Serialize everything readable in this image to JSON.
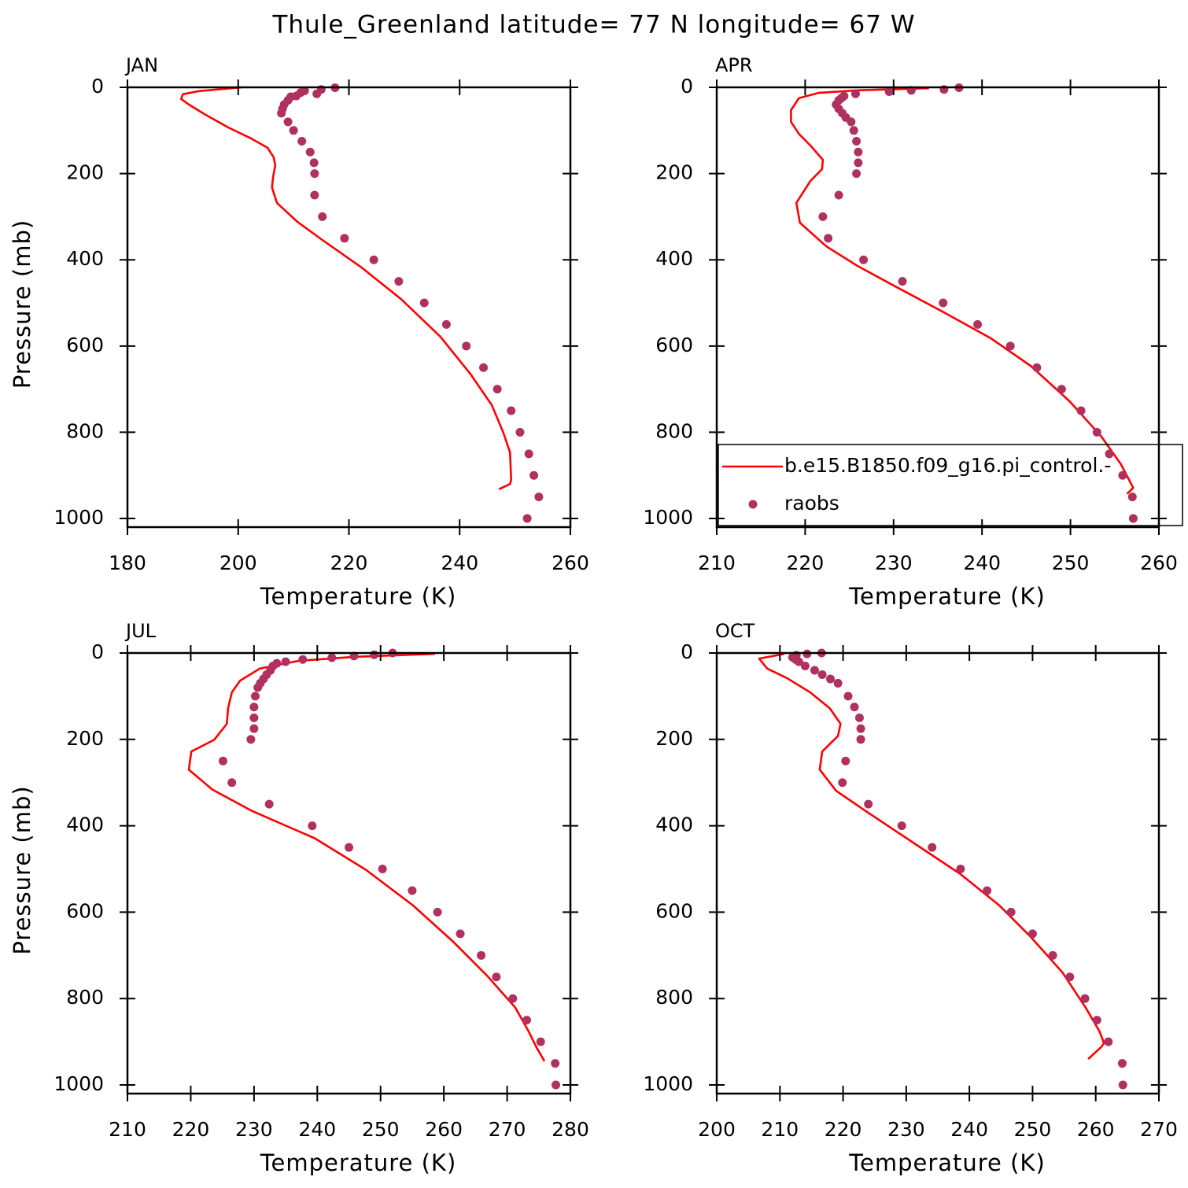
{
  "title": "Thule_Greenland  latitude= 77 N longitude= 67 W",
  "chart_data": [
    {
      "type": "line",
      "label": "JAN",
      "xlabel": "Temperature (K)",
      "ylabel": "Pressure (mb)",
      "xlim": [
        180,
        260
      ],
      "xticks": [
        180,
        200,
        220,
        240,
        260
      ],
      "ylim": [
        0,
        1020
      ],
      "y_reversed": true,
      "yticks": [
        0,
        200,
        400,
        600,
        800,
        1000
      ],
      "series": [
        {
          "type": "line",
          "color": "#ff0000",
          "x": [
            200.7,
            192.8,
            190,
            189.7,
            191.1,
            193.9,
            198.2,
            202.4,
            205.3,
            206.4,
            206.7,
            206.3,
            206.1,
            207,
            210.7,
            215.2,
            222.3,
            229.4,
            236.5,
            241.9,
            245.8,
            247.9,
            249.1,
            249.3,
            249.1,
            247.1
          ],
          "values": [
            0,
            9,
            16,
            27,
            40,
            62,
            93,
            119,
            140,
            162,
            181,
            208,
            232,
            268,
            312,
            354,
            418,
            491,
            578,
            664,
            737,
            801,
            847,
            911,
            920,
            932
          ]
        },
        {
          "type": "scatter",
          "color": "#b03060",
          "x": [
            217.5,
            215.0,
            214.2,
            212.0,
            211.3,
            210.5,
            209.5,
            209.0,
            208.3,
            208.0,
            207.8,
            209.0,
            210.0,
            211.5,
            213.0,
            213.7,
            213.8,
            213.8,
            215.2,
            219.2,
            224.5,
            229.0,
            233.6,
            237.6,
            241.2,
            244.3,
            246.8,
            249.3,
            250.9,
            252.5,
            253.4,
            254.3,
            252.2
          ],
          "values": [
            1,
            5,
            15,
            8,
            12,
            20,
            22,
            30,
            40,
            50,
            60,
            80,
            100,
            125,
            150,
            175,
            200,
            250,
            300,
            350,
            400,
            450,
            500,
            550,
            600,
            650,
            700,
            750,
            800,
            850,
            900,
            950,
            1000
          ]
        }
      ]
    },
    {
      "type": "line",
      "label": "APR",
      "xlabel": "Temperature (K)",
      "xlim": [
        210,
        260
      ],
      "xticks": [
        210,
        220,
        230,
        240,
        250,
        260
      ],
      "ylim": [
        0,
        1020
      ],
      "y_reversed": true,
      "yticks": [
        0,
        200,
        400,
        600,
        800,
        1000
      ],
      "legend": "lower right",
      "series": [
        {
          "type": "line",
          "name": "b.e15.B1850.f09_g16.pi_control.-",
          "color": "#ff0000",
          "x": [
            234,
            225.9,
            221.5,
            219.3,
            218.4,
            218.4,
            219.3,
            220.6,
            222,
            221.9,
            220.6,
            219,
            219.4,
            222.4,
            225.9,
            230.4,
            235.7,
            241,
            245.5,
            249.9,
            253.5,
            255.7,
            257.1,
            256.4
          ],
          "values": [
            2,
            7,
            13,
            25,
            53,
            80,
            108,
            135,
            168,
            190,
            217,
            268,
            314,
            369,
            414,
            464,
            522,
            582,
            646,
            728,
            810,
            874,
            929,
            943
          ]
        },
        {
          "type": "scatter",
          "name": "raobs",
          "color": "#b03060",
          "x": [
            237.4,
            235.7,
            232.0,
            229.5,
            225.7,
            224.4,
            224.1,
            223.8,
            223.5,
            223.8,
            224.2,
            224.6,
            225.2,
            225.5,
            225.8,
            226.0,
            226.0,
            225.8,
            223.8,
            222.0,
            222.6,
            226.6,
            231.0,
            235.6,
            239.5,
            243.2,
            246.2,
            249.0,
            251.2,
            253.0,
            254.4,
            255.9,
            257.0,
            257.1
          ],
          "values": [
            1,
            5,
            7,
            10,
            15,
            20,
            25,
            30,
            40,
            50,
            60,
            70,
            80,
            100,
            125,
            150,
            175,
            200,
            250,
            300,
            350,
            400,
            450,
            500,
            550,
            600,
            650,
            700,
            750,
            800,
            850,
            900,
            950,
            1000
          ]
        }
      ]
    },
    {
      "type": "line",
      "label": "JUL",
      "xlabel": "Temperature (K)",
      "ylabel": "Pressure (mb)",
      "xlim": [
        210,
        280
      ],
      "xticks": [
        210,
        220,
        230,
        240,
        250,
        260,
        270,
        280
      ],
      "ylim": [
        0,
        1020
      ],
      "y_reversed": true,
      "yticks": [
        0,
        200,
        400,
        600,
        800,
        1000
      ],
      "series": [
        {
          "type": "line",
          "color": "#ff0000",
          "x": [
            258.6,
            245.8,
            237.1,
            230.9,
            227.8,
            226.5,
            225.9,
            225.7,
            223.7,
            220.1,
            219.7,
            223.4,
            229.6,
            239.6,
            247.7,
            255.1,
            261.3,
            266.9,
            271.3,
            273.4,
            274.6,
            275.9
          ],
          "values": [
            2,
            9,
            18,
            36,
            64,
            91,
            128,
            164,
            201,
            228,
            270,
            316,
            365,
            429,
            502,
            584,
            666,
            748,
            821,
            876,
            912,
            945
          ]
        },
        {
          "type": "scatter",
          "color": "#b03060",
          "x": [
            251.9,
            249.0,
            245.8,
            242.3,
            237.7,
            235.0,
            233.6,
            233.0,
            232.6,
            232.0,
            231.5,
            231.0,
            230.6,
            230.2,
            230.0,
            230.0,
            230.0,
            229.5,
            225.1,
            226.5,
            232.4,
            239.2,
            245.0,
            250.3,
            255.0,
            259.0,
            262.6,
            265.9,
            268.3,
            270.9,
            273.1,
            275.3,
            277.6,
            277.7
          ],
          "values": [
            0,
            4,
            7,
            11,
            15,
            20,
            24,
            30,
            40,
            50,
            60,
            70,
            80,
            100,
            125,
            150,
            175,
            200,
            250,
            300,
            350,
            400,
            450,
            500,
            550,
            600,
            650,
            700,
            750,
            800,
            850,
            900,
            950,
            1000
          ]
        }
      ]
    },
    {
      "type": "line",
      "label": "OCT",
      "xlabel": "Temperature (K)",
      "xlim": [
        200,
        270
      ],
      "xticks": [
        200,
        210,
        220,
        230,
        240,
        250,
        260,
        270
      ],
      "ylim": [
        0,
        1020
      ],
      "y_reversed": true,
      "yticks": [
        0,
        200,
        400,
        600,
        800,
        1000
      ],
      "series": [
        {
          "type": "line",
          "color": "#ff0000",
          "x": [
            210.7,
            206.7,
            208,
            211.1,
            214.8,
            217.9,
            219.6,
            219.2,
            216.7,
            216.3,
            218.9,
            223.5,
            231,
            238.5,
            244.7,
            249.7,
            254.7,
            258.4,
            260.6,
            261.3,
            260.9,
            258.8
          ],
          "values": [
            2,
            13,
            36,
            58,
            91,
            128,
            164,
            192,
            228,
            270,
            319,
            365,
            438,
            511,
            584,
            657,
            739,
            821,
            876,
            903,
            912,
            940
          ]
        },
        {
          "type": "scatter",
          "color": "#b03060",
          "x": [
            216.6,
            214.3,
            212.6,
            212.0,
            212.5,
            213.0,
            214.0,
            215.5,
            216.7,
            218.0,
            219.2,
            220.8,
            221.8,
            222.6,
            222.8,
            222.8,
            220.4,
            219.9,
            224.0,
            229.3,
            234.1,
            238.6,
            242.8,
            246.6,
            250.0,
            253.2,
            255.9,
            258.3,
            260.2,
            262.0,
            264.2,
            264.3
          ],
          "values": [
            0,
            2,
            5,
            10,
            15,
            20,
            30,
            40,
            50,
            60,
            70,
            100,
            125,
            150,
            175,
            200,
            250,
            300,
            350,
            400,
            450,
            500,
            550,
            600,
            650,
            700,
            750,
            800,
            850,
            900,
            950,
            1000
          ]
        }
      ]
    }
  ]
}
